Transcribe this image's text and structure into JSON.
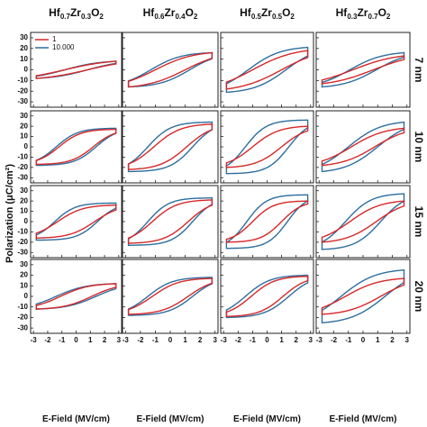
{
  "figure": {
    "y_axis_title": "Polarization (μC/cm²)",
    "x_axis_title": "E-Field (MV/cm)"
  },
  "columns": [
    {
      "base": "Hf",
      "a": "0.7",
      "mid": "Zr",
      "b": "0.3",
      "end": "O",
      "c": "2"
    },
    {
      "base": "Hf",
      "a": "0.6",
      "mid": "Zr",
      "b": "0.4",
      "end": "O",
      "c": "2"
    },
    {
      "base": "Hf",
      "a": "0.5",
      "mid": "Zr",
      "b": "0.5",
      "end": "O",
      "c": "2"
    },
    {
      "base": "Hf",
      "a": "0.3",
      "mid": "Zr",
      "b": "0.7",
      "end": "O",
      "c": "2"
    }
  ],
  "rows": [
    "7 nm",
    "10 nm",
    "15 nm",
    "20 nm"
  ],
  "legend": [
    {
      "label": "1",
      "color": "#d62728"
    },
    {
      "label": "10.000",
      "color": "#2d6e9e"
    }
  ],
  "colors": {
    "red": "#d62728",
    "blue": "#2d6e9e"
  },
  "chart_data": {
    "type": "line",
    "layout": "4x4 grid of P-E hysteresis loops, shared axes",
    "x_ticks": [
      "-3",
      "-2",
      "-1",
      "0",
      "1",
      "2",
      "3"
    ],
    "y_ticks": [
      "-30",
      "-20",
      "-10",
      "0",
      "10",
      "20",
      "30"
    ],
    "xlim": [
      -3.2,
      3.2
    ],
    "ylim": [
      -35,
      35
    ],
    "xlabel": "E-Field (MV/cm)",
    "ylabel": "Polarization (μC/cm²)",
    "panels": [
      {
        "row": "7 nm",
        "col": "Hf0.7Zr0.3O2",
        "series": [
          {
            "name": "1",
            "pmax": 8,
            "emax": 2.8,
            "pr": 2,
            "ec": 0.8
          },
          {
            "name": "10.000",
            "pmax": 8,
            "emax": 2.8,
            "pr": 2.5,
            "ec": 0.8
          }
        ]
      },
      {
        "row": "7 nm",
        "col": "Hf0.6Zr0.4O2",
        "series": [
          {
            "name": "1",
            "pmax": 16,
            "emax": 2.8,
            "pr": 6,
            "ec": 1
          },
          {
            "name": "10.000",
            "pmax": 16,
            "emax": 2.8,
            "pr": 9,
            "ec": 1.3
          }
        ]
      },
      {
        "row": "7 nm",
        "col": "Hf0.5Zr0.5O2",
        "series": [
          {
            "name": "1",
            "pmax": 18,
            "emax": 2.8,
            "pr": 6,
            "ec": 1
          },
          {
            "name": "10.000",
            "pmax": 21,
            "emax": 2.8,
            "pr": 11,
            "ec": 1.3
          }
        ]
      },
      {
        "row": "7 nm",
        "col": "Hf0.3Zr0.7O2",
        "series": [
          {
            "name": "1",
            "pmax": 13,
            "emax": 2.8,
            "pr": 3,
            "ec": 0.7
          },
          {
            "name": "10.000",
            "pmax": 16,
            "emax": 2.8,
            "pr": 6,
            "ec": 0.9
          }
        ]
      },
      {
        "row": "10 nm",
        "col": "Hf0.7Zr0.3O2",
        "series": [
          {
            "name": "1",
            "pmax": 17,
            "emax": 2.8,
            "pr": 11,
            "ec": 1.2
          },
          {
            "name": "10.000",
            "pmax": 18,
            "emax": 2.8,
            "pr": 13,
            "ec": 1.4
          }
        ]
      },
      {
        "row": "10 nm",
        "col": "Hf0.6Zr0.4O2",
        "series": [
          {
            "name": "1",
            "pmax": 22,
            "emax": 2.8,
            "pr": 12,
            "ec": 1.1
          },
          {
            "name": "10.000",
            "pmax": 24,
            "emax": 2.8,
            "pr": 18,
            "ec": 1.5
          }
        ]
      },
      {
        "row": "10 nm",
        "col": "Hf0.5Zr0.5O2",
        "series": [
          {
            "name": "1",
            "pmax": 20,
            "emax": 2.8,
            "pr": 10,
            "ec": 1
          },
          {
            "name": "10.000",
            "pmax": 26,
            "emax": 2.8,
            "pr": 20,
            "ec": 1.5
          }
        ]
      },
      {
        "row": "10 nm",
        "col": "Hf0.3Zr0.7O2",
        "series": [
          {
            "name": "1",
            "pmax": 18,
            "emax": 2.8,
            "pr": 6,
            "ec": 0.8
          },
          {
            "name": "10.000",
            "pmax": 24,
            "emax": 2.8,
            "pr": 10,
            "ec": 1
          }
        ]
      },
      {
        "row": "15 nm",
        "col": "Hf0.7Zr0.3O2",
        "series": [
          {
            "name": "1",
            "pmax": 16,
            "emax": 2.8,
            "pr": 10,
            "ec": 1.3
          },
          {
            "name": "10.000",
            "pmax": 18,
            "emax": 2.8,
            "pr": 14,
            "ec": 1.5
          }
        ]
      },
      {
        "row": "15 nm",
        "col": "Hf0.6Zr0.4O2",
        "series": [
          {
            "name": "1",
            "pmax": 21,
            "emax": 2.8,
            "pr": 13,
            "ec": 1.2
          },
          {
            "name": "10.000",
            "pmax": 23,
            "emax": 2.8,
            "pr": 18,
            "ec": 1.5
          }
        ]
      },
      {
        "row": "15 nm",
        "col": "Hf0.5Zr0.5O2",
        "series": [
          {
            "name": "1",
            "pmax": 20,
            "emax": 2.8,
            "pr": 12,
            "ec": 1
          },
          {
            "name": "10.000",
            "pmax": 26,
            "emax": 2.8,
            "pr": 20,
            "ec": 1.4
          }
        ]
      },
      {
        "row": "15 nm",
        "col": "Hf0.3Zr0.7O2",
        "series": [
          {
            "name": "1",
            "pmax": 20,
            "emax": 2.8,
            "pr": 8,
            "ec": 0.9
          },
          {
            "name": "10.000",
            "pmax": 27,
            "emax": 2.8,
            "pr": 16,
            "ec": 1.2
          }
        ]
      },
      {
        "row": "20 nm",
        "col": "Hf0.7Zr0.3O2",
        "series": [
          {
            "name": "1",
            "pmax": 12,
            "emax": 2.8,
            "pr": 6,
            "ec": 1.1
          },
          {
            "name": "10.000",
            "pmax": 12,
            "emax": 2.8,
            "pr": 7,
            "ec": 1.4
          }
        ]
      },
      {
        "row": "20 nm",
        "col": "Hf0.6Zr0.4O2",
        "series": [
          {
            "name": "1",
            "pmax": 17,
            "emax": 2.8,
            "pr": 10,
            "ec": 1.2
          },
          {
            "name": "10.000",
            "pmax": 18,
            "emax": 2.8,
            "pr": 13,
            "ec": 1.5
          }
        ]
      },
      {
        "row": "20 nm",
        "col": "Hf0.5Zr0.5O2",
        "series": [
          {
            "name": "1",
            "pmax": 19,
            "emax": 2.8,
            "pr": 11,
            "ec": 1.1
          },
          {
            "name": "10.000",
            "pmax": 20,
            "emax": 2.8,
            "pr": 14,
            "ec": 1.5
          }
        ]
      },
      {
        "row": "20 nm",
        "col": "Hf0.3Zr0.7O2",
        "series": [
          {
            "name": "1",
            "pmax": 17,
            "emax": 2.8,
            "pr": 8,
            "ec": 1.2
          },
          {
            "name": "10.000",
            "pmax": 25,
            "emax": 2.8,
            "pr": 14,
            "ec": 1.5
          }
        ]
      }
    ]
  }
}
